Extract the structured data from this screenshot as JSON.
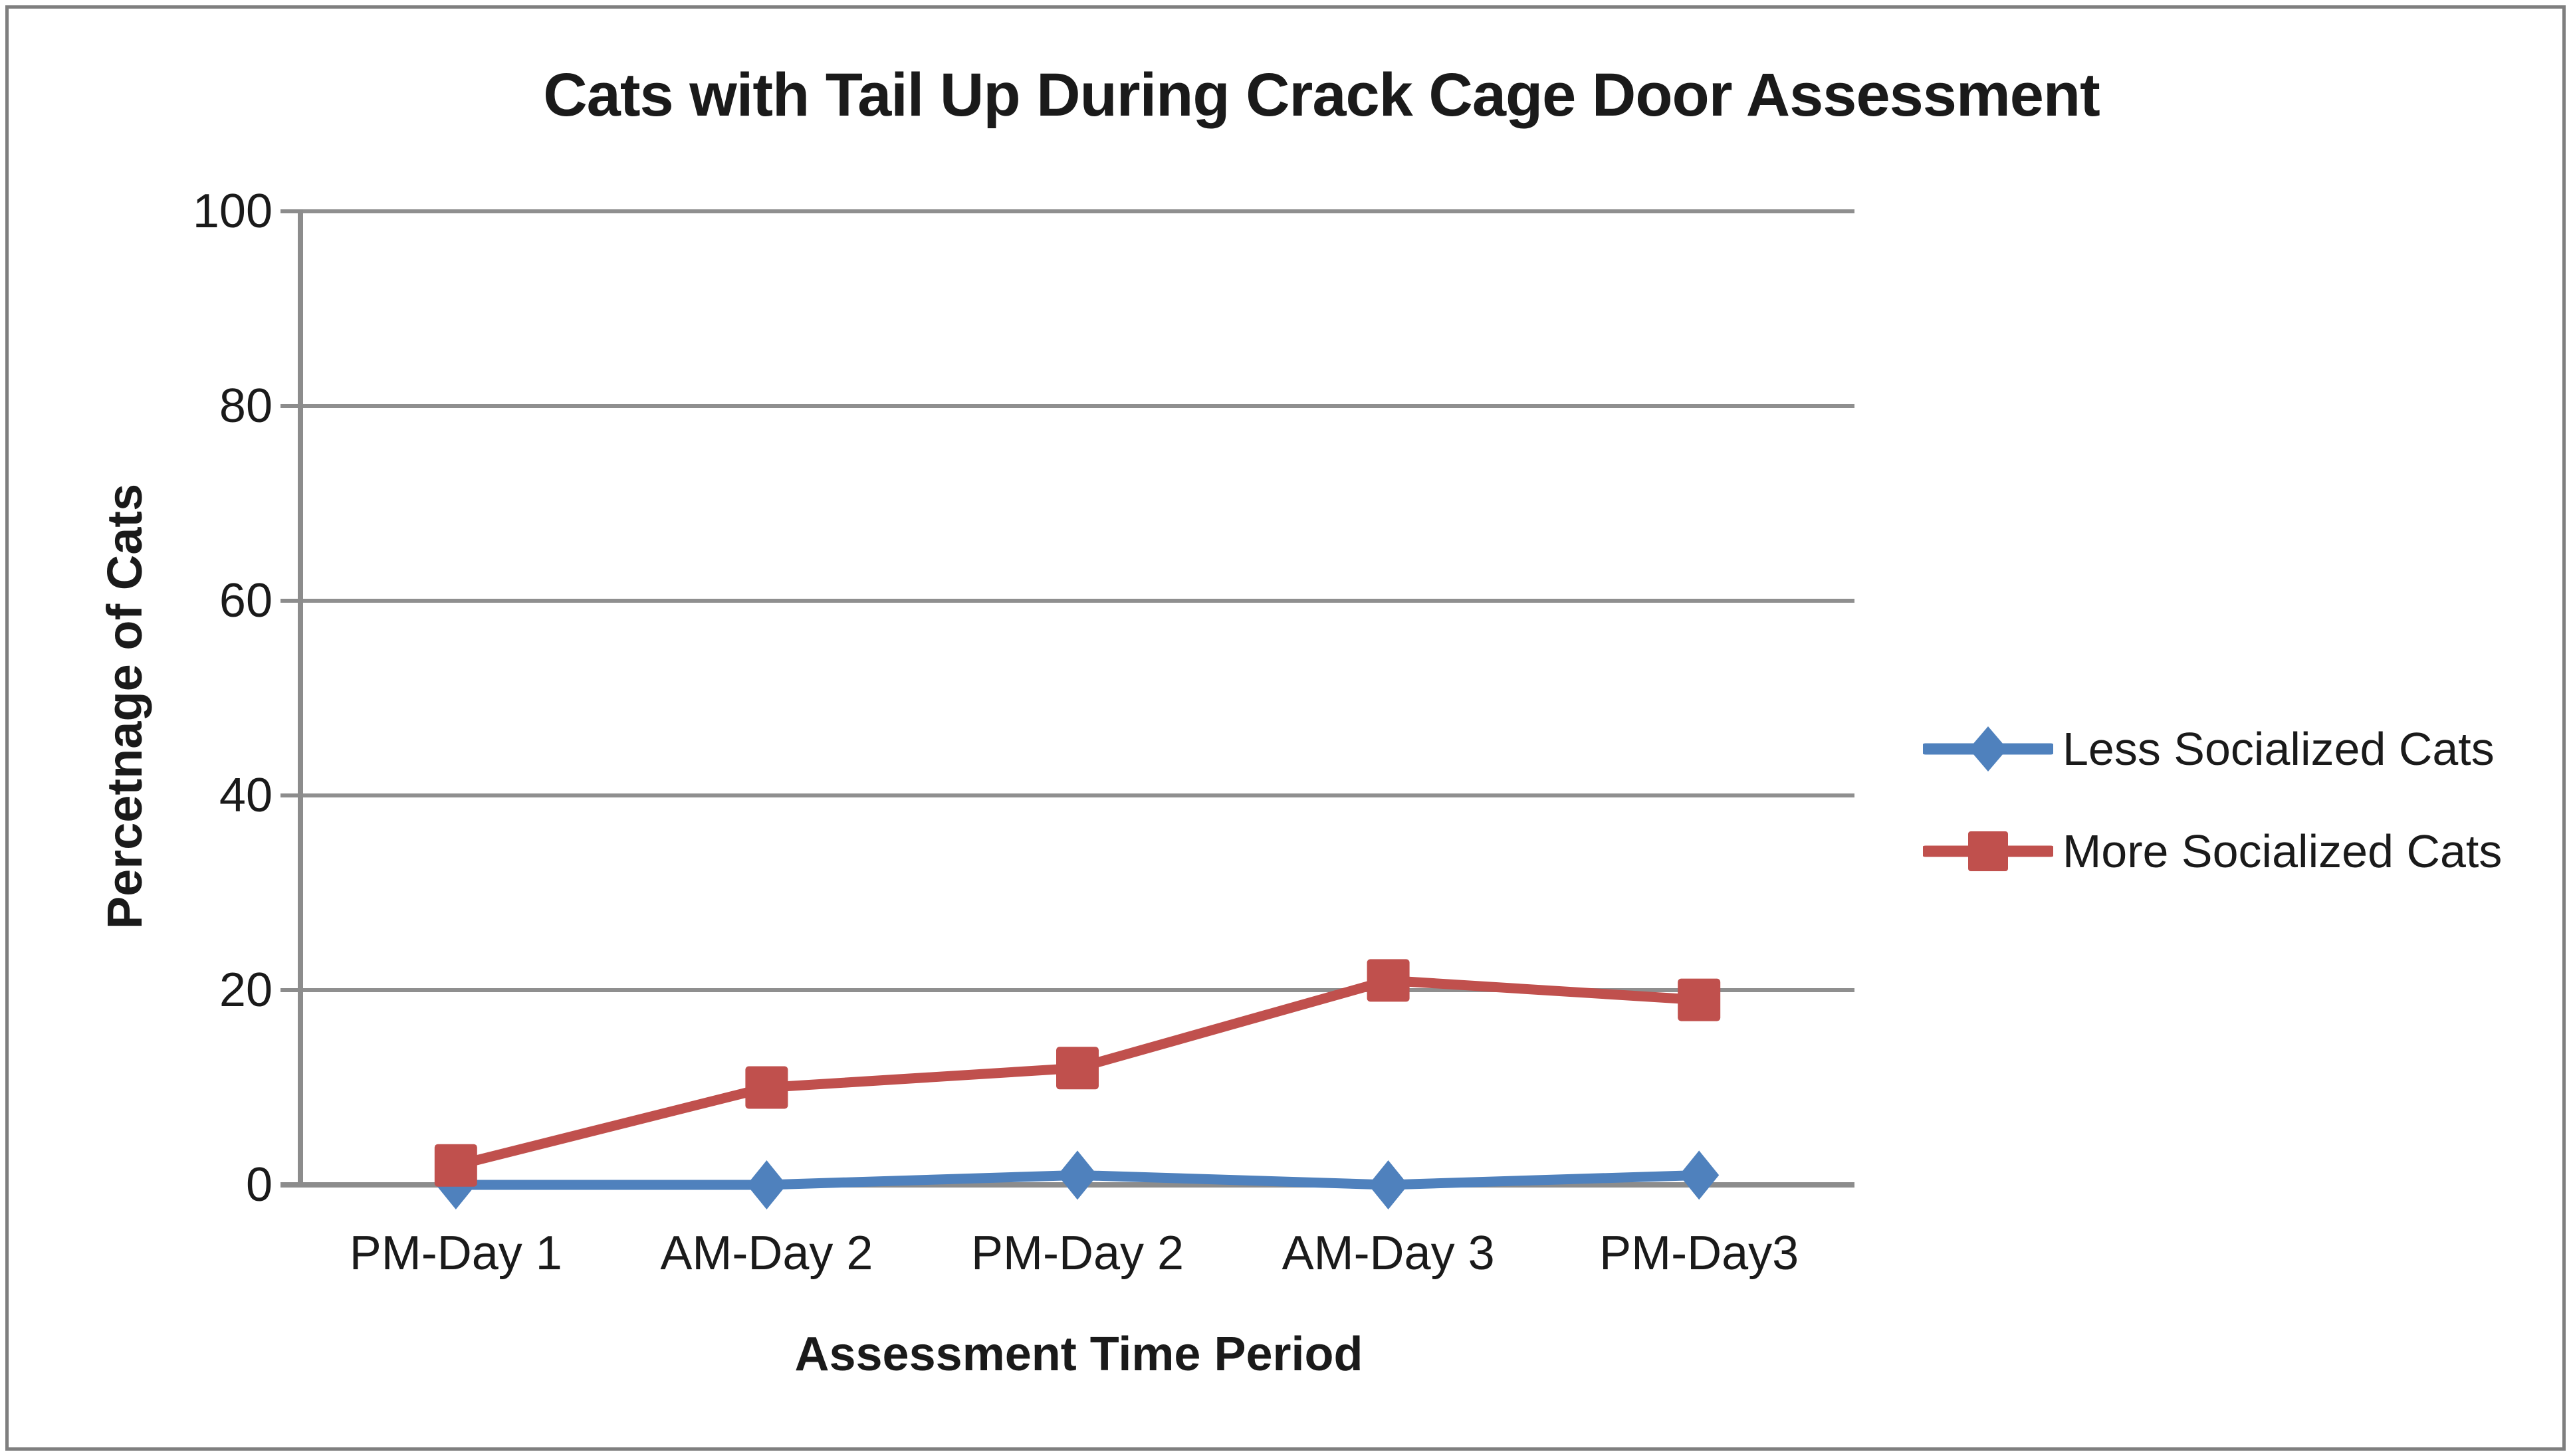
{
  "chart_data": {
    "type": "line",
    "title": "Cats with Tail Up During Crack Cage Door Assessment",
    "xlabel": "Assessment Time Period",
    "ylabel": "Percetnage of Cats",
    "categories": [
      "PM-Day 1",
      "AM-Day 2",
      "PM-Day 2",
      "AM-Day 3",
      "PM-Day3"
    ],
    "series": [
      {
        "name": "Less Socialized Cats",
        "values": [
          0,
          0,
          1,
          0,
          1
        ],
        "color": "#4F81BD",
        "marker": "diamond"
      },
      {
        "name": "More Socialized Cats",
        "values": [
          2,
          10,
          12,
          21,
          19
        ],
        "color": "#C0504D",
        "marker": "square"
      }
    ],
    "ylim": [
      0,
      100
    ],
    "ytick_step": 20,
    "yticks": [
      0,
      20,
      40,
      60,
      80,
      100
    ],
    "grid": "horizontal",
    "legend_position": "right",
    "axis_color": "#8C8C8C",
    "gridline_color": "#8F8F8F",
    "frame_border_color": "#7F7F7F",
    "text_color": "#1a1a1a"
  }
}
